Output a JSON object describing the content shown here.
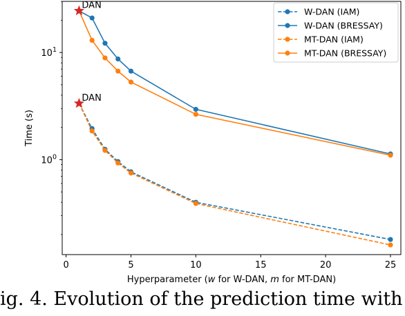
{
  "chart_data": {
    "type": "line",
    "xlabel_parts": [
      "Hyperparameter (",
      "w",
      " for W-DAN, ",
      "m",
      " for MT-DAN)"
    ],
    "ylabel": "Time (s)",
    "xlim": [
      -0.3,
      25.8
    ],
    "ylim": [
      0.13,
      30
    ],
    "yscale": "log",
    "x_ticks": [
      0,
      5,
      10,
      15,
      20,
      25
    ],
    "y_ticks": [
      {
        "value": 1,
        "base": "10",
        "exp": "0"
      },
      {
        "value": 10,
        "base": "10",
        "exp": "1"
      }
    ],
    "grid": false,
    "legend_position": "top-right",
    "series": [
      {
        "name": "W-DAN (IAM)",
        "color": "#1f77b4",
        "dash": true,
        "x": [
          1,
          2,
          3,
          4,
          5,
          10,
          25
        ],
        "y": [
          3.35,
          1.95,
          1.25,
          0.96,
          0.77,
          0.4,
          0.18
        ]
      },
      {
        "name": "W-DAN (BRESSAY)",
        "color": "#1f77b4",
        "dash": false,
        "x": [
          1,
          2,
          3,
          4,
          5,
          10,
          25
        ],
        "y": [
          24.5,
          21.0,
          12.2,
          8.7,
          6.7,
          2.95,
          1.13
        ]
      },
      {
        "name": "MT-DAN (IAM)",
        "color": "#ff7f0e",
        "dash": true,
        "x": [
          1,
          2,
          3,
          4,
          5,
          10,
          25
        ],
        "y": [
          3.35,
          1.85,
          1.22,
          0.93,
          0.75,
          0.39,
          0.16
        ]
      },
      {
        "name": "MT-DAN (BRESSAY)",
        "color": "#ff7f0e",
        "dash": false,
        "x": [
          1,
          2,
          3,
          4,
          5,
          10,
          25
        ],
        "y": [
          24.5,
          13.0,
          8.9,
          6.7,
          5.3,
          2.65,
          1.1
        ]
      }
    ],
    "annotations": [
      {
        "text": "DAN",
        "x": 1,
        "y": 24.5,
        "marker": "star",
        "color": "#d62728"
      },
      {
        "text": "DAN",
        "x": 1,
        "y": 3.35,
        "marker": "star",
        "color": "#d62728"
      }
    ]
  },
  "caption": "ig. 4. Evolution of the prediction time with"
}
